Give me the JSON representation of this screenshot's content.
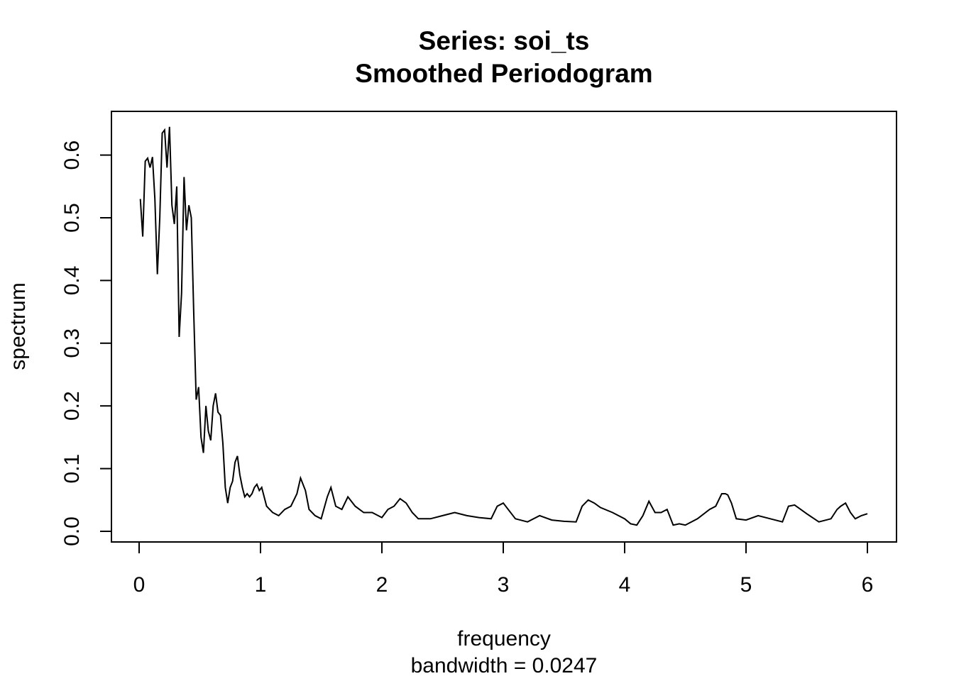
{
  "chart_data": {
    "type": "line",
    "title": "Series: soi_ts",
    "subtitle": "Smoothed Periodogram",
    "xlabel": "frequency",
    "xsublabel": "bandwidth = 0.0247",
    "ylabel": "spectrum",
    "xlim": [
      0,
      6
    ],
    "ylim": [
      0,
      0.65
    ],
    "xticks": [
      "0",
      "1",
      "2",
      "3",
      "4",
      "5",
      "6"
    ],
    "yticks": [
      "0.0",
      "0.1",
      "0.2",
      "0.3",
      "0.4",
      "0.5",
      "0.6"
    ],
    "grid": false,
    "series": [
      {
        "x": [
          0.01,
          0.03,
          0.05,
          0.07,
          0.09,
          0.11,
          0.13,
          0.15,
          0.17,
          0.19,
          0.21,
          0.23,
          0.25,
          0.27,
          0.29,
          0.31,
          0.33,
          0.35,
          0.37,
          0.39,
          0.41,
          0.43,
          0.45,
          0.47,
          0.49,
          0.51,
          0.53,
          0.55,
          0.57,
          0.59,
          0.61,
          0.63,
          0.65,
          0.67,
          0.69,
          0.71,
          0.73,
          0.75,
          0.77,
          0.79,
          0.81,
          0.83,
          0.85,
          0.87,
          0.89,
          0.91,
          0.93,
          0.95,
          0.97,
          0.99,
          1.01,
          1.05,
          1.1,
          1.15,
          1.2,
          1.25,
          1.3,
          1.33,
          1.37,
          1.4,
          1.45,
          1.5,
          1.55,
          1.58,
          1.62,
          1.67,
          1.72,
          1.78,
          1.85,
          1.92,
          2.0,
          2.05,
          2.1,
          2.15,
          2.2,
          2.25,
          2.3,
          2.4,
          2.5,
          2.6,
          2.7,
          2.8,
          2.9,
          2.95,
          3.0,
          3.1,
          3.2,
          3.3,
          3.4,
          3.5,
          3.6,
          3.65,
          3.7,
          3.75,
          3.8,
          3.9,
          4.0,
          4.05,
          4.1,
          4.15,
          4.2,
          4.25,
          4.3,
          4.35,
          4.4,
          4.45,
          4.5,
          4.6,
          4.7,
          4.75,
          4.8,
          4.83,
          4.85,
          4.88,
          4.92,
          5.0,
          5.1,
          5.2,
          5.3,
          5.35,
          5.4,
          5.45,
          5.5,
          5.6,
          5.7,
          5.75,
          5.78,
          5.82,
          5.86,
          5.9,
          5.95,
          6.0
        ],
        "values": [
          0.53,
          0.47,
          0.59,
          0.595,
          0.58,
          0.597,
          0.53,
          0.41,
          0.5,
          0.635,
          0.64,
          0.58,
          0.645,
          0.52,
          0.49,
          0.55,
          0.31,
          0.38,
          0.565,
          0.48,
          0.52,
          0.5,
          0.35,
          0.21,
          0.23,
          0.15,
          0.125,
          0.2,
          0.16,
          0.145,
          0.2,
          0.22,
          0.19,
          0.185,
          0.14,
          0.07,
          0.045,
          0.07,
          0.08,
          0.11,
          0.12,
          0.09,
          0.07,
          0.055,
          0.06,
          0.055,
          0.06,
          0.07,
          0.075,
          0.065,
          0.07,
          0.04,
          0.03,
          0.025,
          0.035,
          0.04,
          0.06,
          0.085,
          0.065,
          0.035,
          0.025,
          0.02,
          0.055,
          0.07,
          0.04,
          0.035,
          0.055,
          0.04,
          0.03,
          0.03,
          0.022,
          0.035,
          0.04,
          0.052,
          0.045,
          0.03,
          0.02,
          0.02,
          0.025,
          0.03,
          0.025,
          0.022,
          0.02,
          0.04,
          0.045,
          0.02,
          0.015,
          0.025,
          0.018,
          0.016,
          0.015,
          0.04,
          0.05,
          0.045,
          0.038,
          0.03,
          0.02,
          0.012,
          0.01,
          0.025,
          0.048,
          0.03,
          0.03,
          0.035,
          0.01,
          0.012,
          0.01,
          0.02,
          0.035,
          0.04,
          0.06,
          0.06,
          0.058,
          0.045,
          0.02,
          0.018,
          0.025,
          0.02,
          0.015,
          0.04,
          0.042,
          0.035,
          0.028,
          0.015,
          0.02,
          0.035,
          0.04,
          0.045,
          0.03,
          0.02,
          0.025,
          0.028
        ]
      }
    ]
  }
}
